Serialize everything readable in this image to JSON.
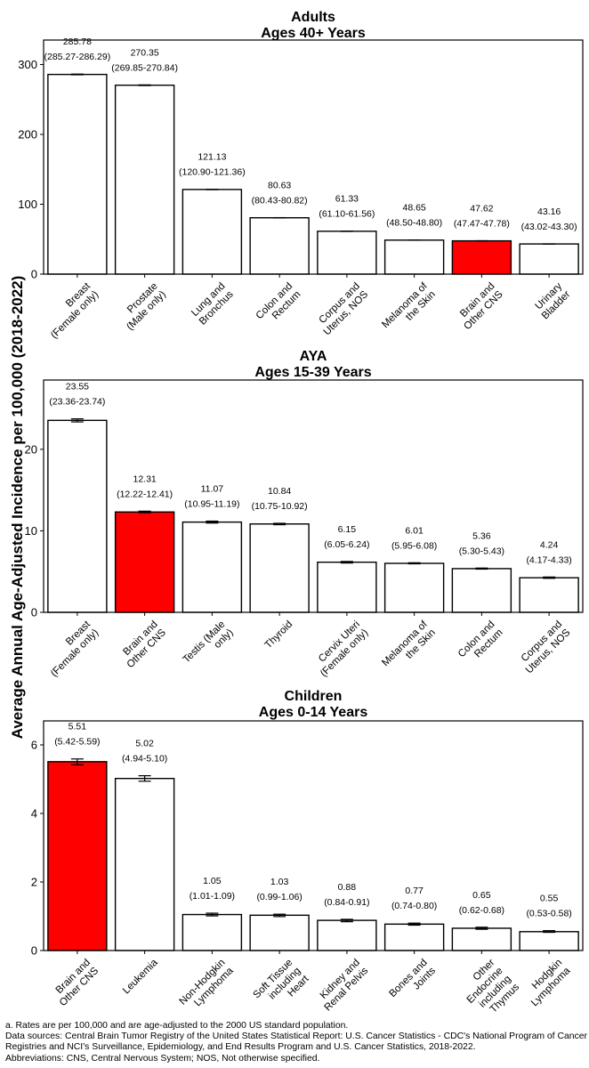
{
  "y_axis_label": "Average Annual Age-Adjusted Incidence per 100,000 (2018-2022)",
  "highlight_color": "#ff0000",
  "bar_color": "#ffffff",
  "chart_data": [
    {
      "type": "bar",
      "title": "Adults",
      "subtitle": "Ages 40+ Years",
      "ylim": [
        0,
        335
      ],
      "yticks": [
        0,
        100,
        200,
        300
      ],
      "categories": [
        [
          "Breast",
          "(Female only)"
        ],
        [
          "Prostate",
          "(Male only)"
        ],
        [
          "Lung and",
          "Bronchus"
        ],
        [
          "Colon and",
          "Rectum"
        ],
        [
          "Corpus and",
          "Uterus, NOS"
        ],
        [
          "Melanoma of",
          "the Skin"
        ],
        [
          "Brain and",
          "Other CNS"
        ],
        [
          "Urinary",
          "Bladder"
        ]
      ],
      "values": [
        285.78,
        270.35,
        121.13,
        80.63,
        61.33,
        48.65,
        47.62,
        43.16
      ],
      "value_labels": [
        "285.78",
        "270.35",
        "121.13",
        "80.63",
        "61.33",
        "48.65",
        "47.62",
        "43.16"
      ],
      "ci_lower": [
        285.27,
        269.85,
        120.9,
        80.43,
        61.1,
        48.5,
        47.47,
        43.02
      ],
      "ci_upper": [
        286.29,
        270.84,
        121.36,
        80.82,
        61.56,
        48.8,
        47.78,
        43.3
      ],
      "ci_labels": [
        "(285.27-286.29)",
        "(269.85-270.84)",
        "(120.90-121.36)",
        "(80.43-80.82)",
        "(61.10-61.56)",
        "(48.50-48.80)",
        "(47.47-47.78)",
        "(43.02-43.30)"
      ],
      "highlight_index": 6
    },
    {
      "type": "bar",
      "title": "AYA",
      "subtitle": "Ages 15-39 Years",
      "ylim": [
        0,
        28.5
      ],
      "yticks": [
        0,
        10,
        20
      ],
      "categories": [
        [
          "Breast",
          "(Female only)"
        ],
        [
          "Brain and",
          "Other CNS"
        ],
        [
          "Testis (Male",
          "only)"
        ],
        [
          "Thyroid"
        ],
        [
          "Cervix Uteri",
          "(Female only)"
        ],
        [
          "Melanoma of",
          "the Skin"
        ],
        [
          "Colon and",
          "Rectum"
        ],
        [
          "Corpus and",
          "Uterus, NOS"
        ]
      ],
      "values": [
        23.55,
        12.31,
        11.07,
        10.84,
        6.15,
        6.01,
        5.36,
        4.24
      ],
      "value_labels": [
        "23.55",
        "12.31",
        "11.07",
        "10.84",
        "6.15",
        "6.01",
        "5.36",
        "4.24"
      ],
      "ci_lower": [
        23.36,
        12.22,
        10.95,
        10.75,
        6.05,
        5.95,
        5.3,
        4.17
      ],
      "ci_upper": [
        23.74,
        12.41,
        11.19,
        10.92,
        6.24,
        6.08,
        5.43,
        4.33
      ],
      "ci_labels": [
        "(23.36-23.74)",
        "(12.22-12.41)",
        "(10.95-11.19)",
        "(10.75-10.92)",
        "(6.05-6.24)",
        "(5.95-6.08)",
        "(5.30-5.43)",
        "(4.17-4.33)"
      ],
      "highlight_index": 1
    },
    {
      "type": "bar",
      "title": "Children",
      "subtitle": "Ages 0-14 Years",
      "ylim": [
        0,
        6.7
      ],
      "yticks": [
        0,
        2,
        4,
        6
      ],
      "categories": [
        [
          "Brain and",
          "Other CNS"
        ],
        [
          "Leukemia"
        ],
        [
          "Non-Hodgkin",
          "Lymphoma"
        ],
        [
          "Soft Tissue",
          "including",
          "Heart"
        ],
        [
          "Kidney and",
          "Renal Pelvis"
        ],
        [
          "Bones and",
          "Joints"
        ],
        [
          "Other",
          "Endocrine",
          "including",
          "Thymus"
        ],
        [
          "Hodgkin",
          "Lymphoma"
        ]
      ],
      "values": [
        5.51,
        5.02,
        1.05,
        1.03,
        0.88,
        0.77,
        0.65,
        0.55
      ],
      "value_labels": [
        "5.51",
        "5.02",
        "1.05",
        "1.03",
        "0.88",
        "0.77",
        "0.65",
        "0.55"
      ],
      "ci_lower": [
        5.42,
        4.94,
        1.01,
        0.99,
        0.84,
        0.74,
        0.62,
        0.53
      ],
      "ci_upper": [
        5.59,
        5.1,
        1.09,
        1.06,
        0.91,
        0.8,
        0.68,
        0.58
      ],
      "ci_labels": [
        "(5.42-5.59)",
        "(4.94-5.10)",
        "(1.01-1.09)",
        "(0.99-1.06)",
        "(0.84-0.91)",
        "(0.74-0.80)",
        "(0.62-0.68)",
        "(0.53-0.58)"
      ],
      "highlight_index": 0
    }
  ],
  "footnotes": [
    "a. Rates are per 100,000 and are age-adjusted to the 2000 US standard population.",
    "Data sources: Central Brain Tumor Registry of the United States Statistical Report: U.S. Cancer Statistics - CDC's National Program of Cancer",
    "Registries and NCI's Surveillance, Epidemiology, and End Results Program and U.S. Cancer Statistics, 2018-2022.",
    "Abbreviations: CNS, Central Nervous System; NOS, Not otherwise specified."
  ]
}
